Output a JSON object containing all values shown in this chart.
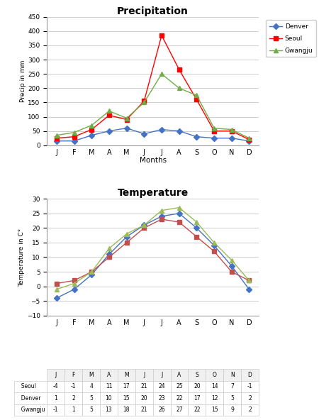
{
  "months": [
    "J",
    "F",
    "M",
    "A",
    "M",
    "J",
    "J",
    "A",
    "S",
    "O",
    "N",
    "D"
  ],
  "precip": {
    "Denver": [
      15,
      15,
      35,
      50,
      60,
      40,
      55,
      50,
      30,
      25,
      25,
      15
    ],
    "Seoul": [
      25,
      30,
      55,
      105,
      90,
      155,
      385,
      265,
      160,
      50,
      50,
      20
    ],
    "Gwangju": [
      35,
      45,
      70,
      120,
      95,
      150,
      250,
      200,
      175,
      60,
      55,
      25
    ]
  },
  "temp": {
    "Seoul": [
      -4,
      -1,
      4,
      11,
      17,
      21,
      24,
      25,
      20,
      14,
      7,
      -1
    ],
    "Denver": [
      1,
      2,
      5,
      10,
      15,
      20,
      23,
      22,
      17,
      12,
      5,
      2
    ],
    "Gwangju": [
      -1,
      1,
      5,
      13,
      18,
      21,
      26,
      27,
      22,
      15,
      9,
      2
    ]
  },
  "precip_order": [
    "Denver",
    "Seoul",
    "Gwangju"
  ],
  "temp_order": [
    "Seoul",
    "Denver",
    "Gwangju"
  ],
  "precip_colors": {
    "Denver": "#4472C4",
    "Seoul": "#FF0000",
    "Gwangju": "#70AD47"
  },
  "precip_markers": {
    "Denver": "D",
    "Seoul": "s",
    "Gwangju": "^"
  },
  "temp_colors": {
    "Seoul": "#4472C4",
    "Denver": "#C0504D",
    "Gwangju": "#9BBB59"
  },
  "temp_markers": {
    "Seoul": "D",
    "Denver": "s",
    "Gwangju": "^"
  },
  "precip_ylim": [
    0,
    450
  ],
  "precip_yticks": [
    0,
    50,
    100,
    150,
    200,
    250,
    300,
    350,
    400,
    450
  ],
  "temp_ylim": [
    -10,
    30
  ],
  "temp_yticks": [
    -10,
    -5,
    0,
    5,
    10,
    15,
    20,
    25,
    30
  ],
  "precip_ylabel": "Precip in mm",
  "temp_ylabel": "Temperature in C°",
  "precip_xlabel": "Months",
  "precip_title": "Precipitation",
  "temp_title": "Temperature",
  "background_color": "#FFFFFF",
  "grid_color": "#BBBBBB",
  "table_header_bg": "#F0F0F0",
  "table_cell_bg": "#FFFFFF",
  "table_border_color": "#CCCCCC"
}
